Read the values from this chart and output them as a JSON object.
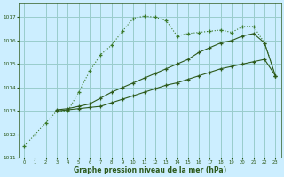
{
  "title": "Graphe pression niveau de la mer (hPa)",
  "bg_color": "#cceeff",
  "grid_color": "#99cccc",
  "line_color_dark": "#2d5a1b",
  "line_color_dotted": "#3a7a2a",
  "xlim": [
    -0.5,
    23.5
  ],
  "ylim": [
    1011.0,
    1017.6
  ],
  "yticks": [
    1011,
    1012,
    1013,
    1014,
    1015,
    1016,
    1017
  ],
  "xticks": [
    0,
    1,
    2,
    3,
    4,
    5,
    6,
    7,
    8,
    9,
    10,
    11,
    12,
    13,
    14,
    15,
    16,
    17,
    18,
    19,
    20,
    21,
    22,
    23
  ],
  "series1_x": [
    0,
    1,
    2,
    3,
    4,
    5,
    6,
    7,
    8,
    9,
    10,
    11,
    12,
    13,
    14,
    15,
    16,
    17,
    18,
    19,
    20,
    21,
    22,
    23
  ],
  "series1_y": [
    1011.5,
    1012.0,
    1012.5,
    1013.0,
    1013.0,
    1013.8,
    1014.7,
    1015.4,
    1015.8,
    1016.4,
    1016.95,
    1017.05,
    1017.0,
    1016.85,
    1016.2,
    1016.3,
    1016.35,
    1016.4,
    1016.45,
    1016.35,
    1016.6,
    1016.6,
    1015.9,
    1014.5
  ],
  "series2_x": [
    3,
    4,
    5,
    6,
    7,
    8,
    9,
    10,
    11,
    12,
    13,
    14,
    15,
    16,
    17,
    18,
    19,
    20,
    21,
    22,
    23
  ],
  "series2_y": [
    1013.05,
    1013.1,
    1013.2,
    1013.3,
    1013.55,
    1013.8,
    1014.0,
    1014.2,
    1014.4,
    1014.6,
    1014.8,
    1015.0,
    1015.2,
    1015.5,
    1015.7,
    1015.9,
    1016.0,
    1016.2,
    1016.3,
    1015.9,
    1014.5
  ],
  "series3_x": [
    3,
    4,
    5,
    6,
    7,
    8,
    9,
    10,
    11,
    12,
    13,
    14,
    15,
    16,
    17,
    18,
    19,
    20,
    21,
    22,
    23
  ],
  "series3_y": [
    1013.0,
    1013.05,
    1013.1,
    1013.15,
    1013.2,
    1013.35,
    1013.5,
    1013.65,
    1013.8,
    1013.95,
    1014.1,
    1014.2,
    1014.35,
    1014.5,
    1014.65,
    1014.8,
    1014.9,
    1015.0,
    1015.1,
    1015.2,
    1014.5
  ]
}
